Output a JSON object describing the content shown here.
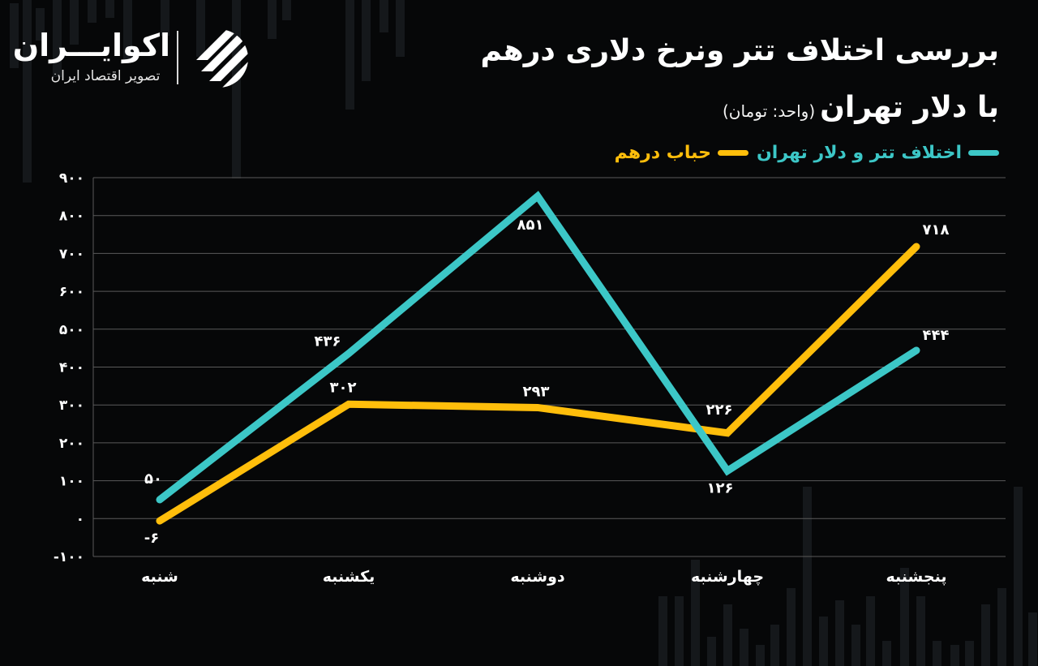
{
  "brand": {
    "name": "اکوایـــران",
    "tagline": "تصویر اقتصاد ایران"
  },
  "colors": {
    "teal": "#3cc7c7",
    "yellow": "#ffbe0b",
    "background": "#060708",
    "grid": "#5a5a5a"
  },
  "chart_data": {
    "type": "line",
    "title": "بررسی اختلاف تتر  ونرخ دلاری درهم",
    "subtitle": "با دلار تهران",
    "unit_note": "(واحد: تومان)",
    "legend_placement": "top-right",
    "categories": [
      "شنبه",
      "یکشنبه",
      "دوشنبه",
      "چهارشنبه",
      "پنجشنبه"
    ],
    "ylim": [
      -100,
      900
    ],
    "y_ticks": [
      -100,
      0,
      100,
      200,
      300,
      400,
      500,
      600,
      700,
      800,
      900
    ],
    "y_tick_labels": [
      "-۱۰۰",
      "۰",
      "۱۰۰",
      "۲۰۰",
      "۳۰۰",
      "۴۰۰",
      "۵۰۰",
      "۶۰۰",
      "۷۰۰",
      "۸۰۰",
      "۹۰۰"
    ],
    "grid": true,
    "series": [
      {
        "name": "اختلاف  تتر و دلار تهران",
        "color": "#3cc7c7",
        "values": [
          50,
          436,
          851,
          126,
          444
        ],
        "labels": [
          "۵۰",
          "۴۳۶",
          "۸۵۱",
          "۱۲۶",
          "۴۴۴"
        ]
      },
      {
        "name": "حباب درهم",
        "color": "#ffbe0b",
        "values": [
          -6,
          302,
          293,
          226,
          718
        ],
        "labels": [
          "-۶",
          "۳۰۲",
          "۲۹۳",
          "۲۲۶",
          "۷۱۸"
        ]
      }
    ]
  }
}
